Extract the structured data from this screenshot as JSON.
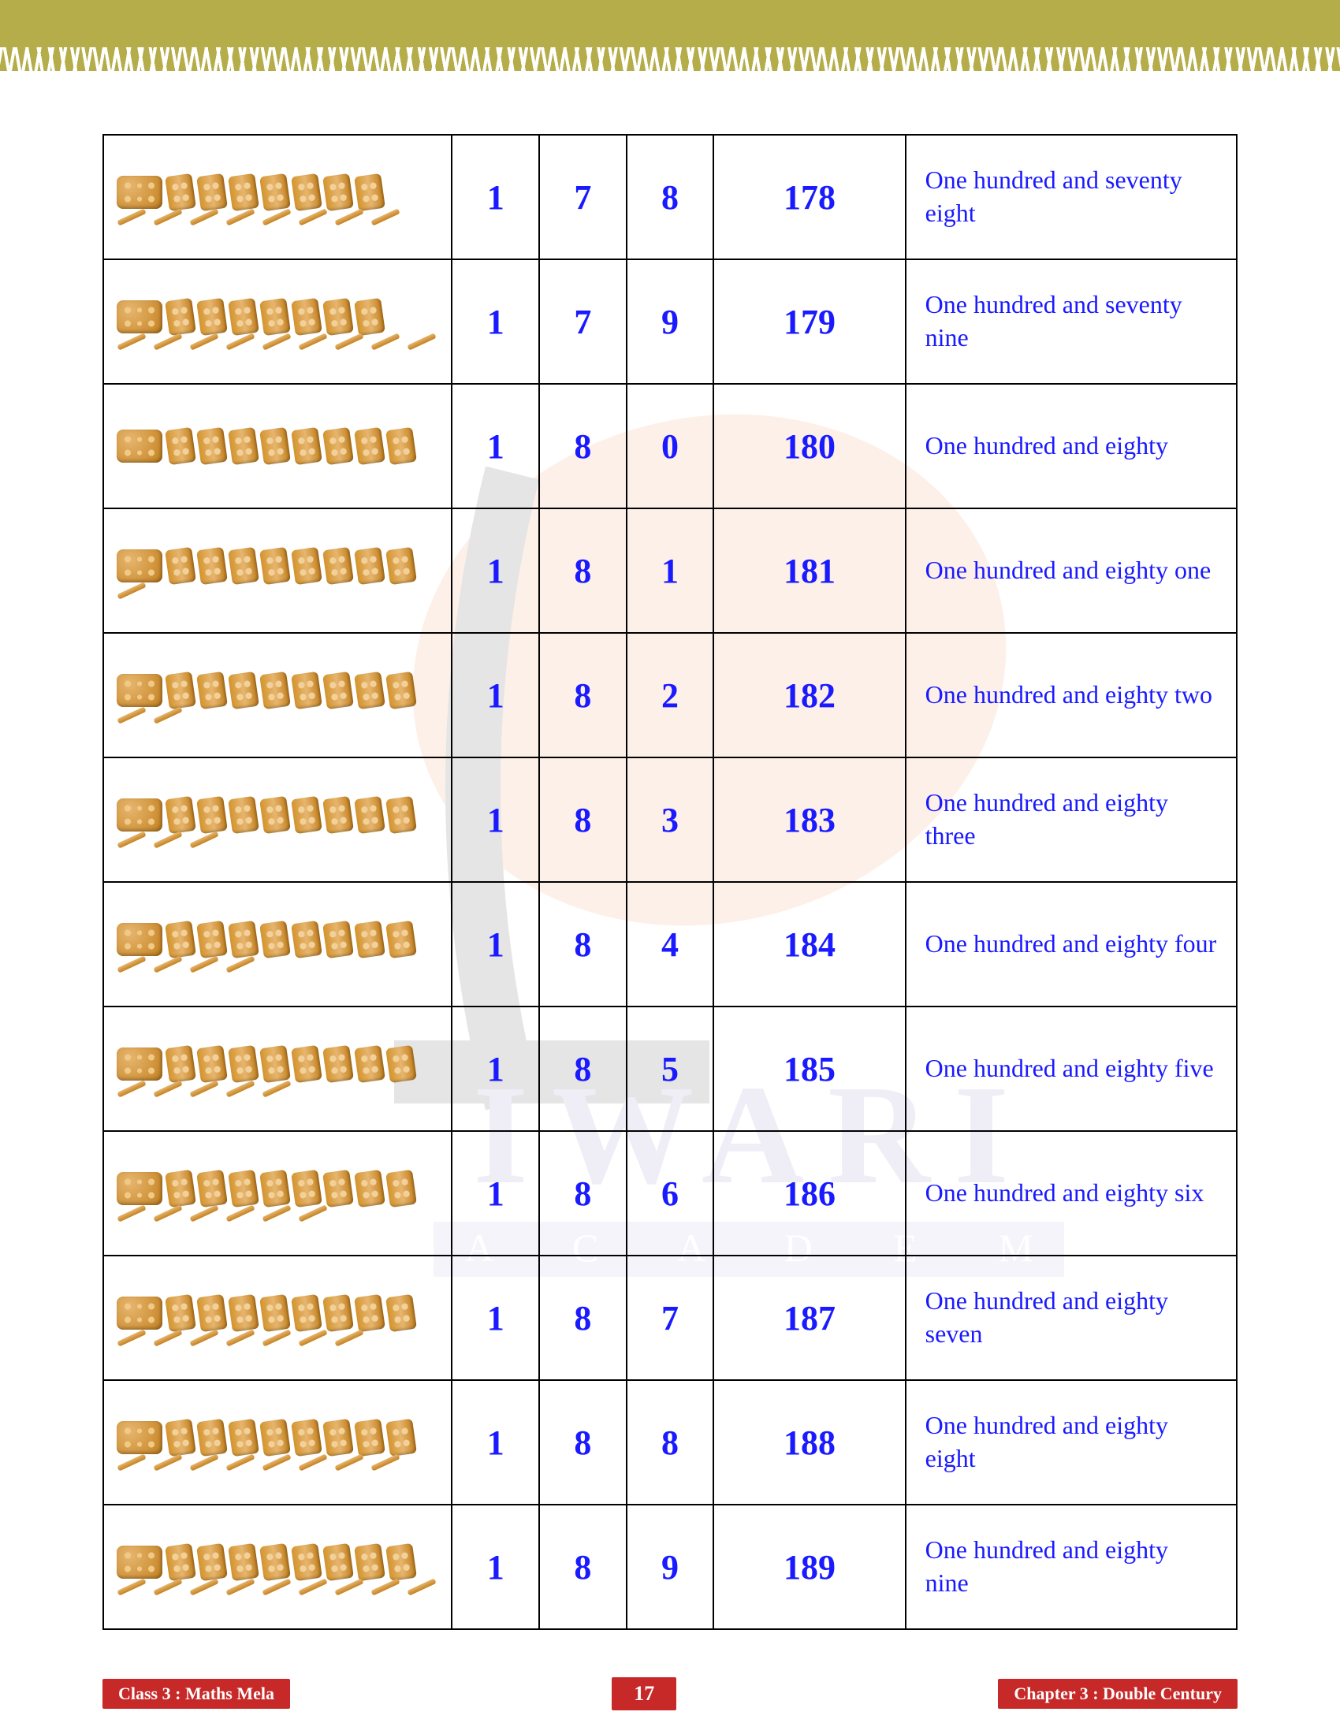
{
  "page": {
    "number": "17",
    "left_badge": "Class 3 : Maths Mela",
    "right_badge": "Chapter 3 : Double Century"
  },
  "colors": {
    "text_blue": "#1a1aff",
    "border": "#000000",
    "badge_bg": "#c72828",
    "badge_text": "#ffffff",
    "grass": "#b5ad4a",
    "bundle_light": "#e6b56e",
    "bundle_dark": "#c4811f"
  },
  "table": {
    "columns": [
      "visual",
      "hundreds_digit",
      "tens_digit",
      "ones_digit",
      "number",
      "words"
    ],
    "rows": [
      {
        "hundreds": 1,
        "tens": 7,
        "ones": 8,
        "number": "178",
        "words": "One hundred and seventy eight"
      },
      {
        "hundreds": 1,
        "tens": 7,
        "ones": 9,
        "number": "179",
        "words": "One hundred and seventy nine"
      },
      {
        "hundreds": 1,
        "tens": 8,
        "ones": 0,
        "number": "180",
        "words": "One hundred and eighty"
      },
      {
        "hundreds": 1,
        "tens": 8,
        "ones": 1,
        "number": "181",
        "words": "One hundred and eighty one"
      },
      {
        "hundreds": 1,
        "tens": 8,
        "ones": 2,
        "number": "182",
        "words": "One hundred and eighty two"
      },
      {
        "hundreds": 1,
        "tens": 8,
        "ones": 3,
        "number": "183",
        "words": "One hundred and eighty three"
      },
      {
        "hundreds": 1,
        "tens": 8,
        "ones": 4,
        "number": "184",
        "words": "One hundred and eighty four"
      },
      {
        "hundreds": 1,
        "tens": 8,
        "ones": 5,
        "number": "185",
        "words": "One hundred and eighty five"
      },
      {
        "hundreds": 1,
        "tens": 8,
        "ones": 6,
        "number": "186",
        "words": "One hundred and eighty six"
      },
      {
        "hundreds": 1,
        "tens": 8,
        "ones": 7,
        "number": "187",
        "words": "One hundred and eighty seven"
      },
      {
        "hundreds": 1,
        "tens": 8,
        "ones": 8,
        "number": "188",
        "words": "One hundred and eighty eight"
      },
      {
        "hundreds": 1,
        "tens": 8,
        "ones": 9,
        "number": "189",
        "words": "One hundred and eighty nine"
      }
    ]
  },
  "watermark": {
    "text": "IWARI",
    "subtext": "A C A D E M Y"
  }
}
